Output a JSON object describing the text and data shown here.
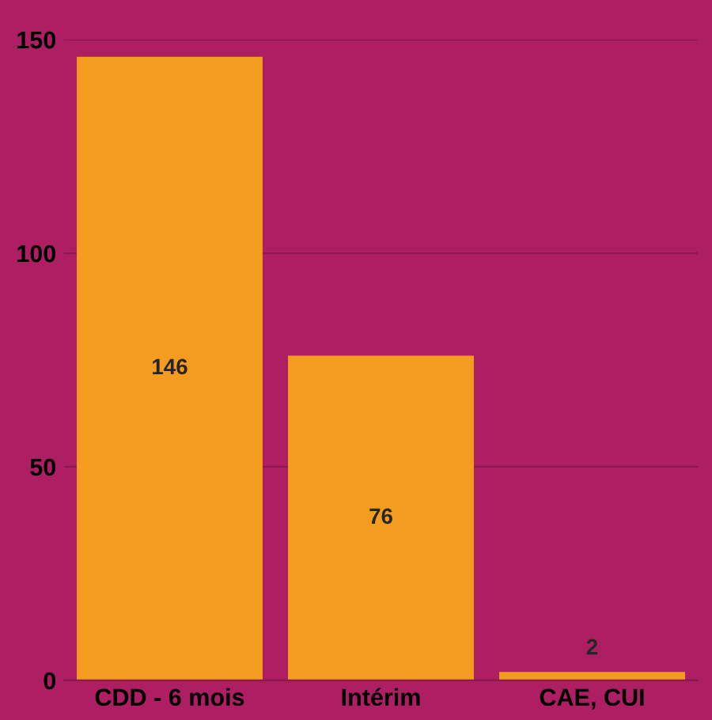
{
  "chart_data": {
    "type": "bar",
    "categories": [
      "CDD - 6 mois",
      "Intérim",
      "CAE, CUI"
    ],
    "values": [
      146,
      76,
      2
    ],
    "color": "#f39c1f",
    "ylim": [
      0,
      150
    ],
    "yticks": [
      0,
      50,
      100,
      150
    ],
    "grid": "y",
    "data_labels": true
  }
}
